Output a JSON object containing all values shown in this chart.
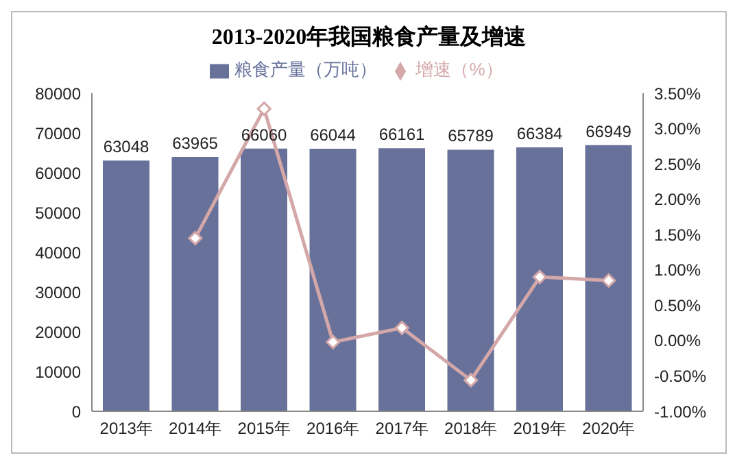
{
  "chart_data": {
    "type": "bar",
    "title": "2013-2020年我国粮食产量及增速",
    "categories": [
      "2013年",
      "2014年",
      "2015年",
      "2016年",
      "2017年",
      "2018年",
      "2019年",
      "2020年"
    ],
    "series": [
      {
        "name": "粮食产量（万吨）",
        "color": "#68719a",
        "values": [
          63048,
          63965,
          66060,
          66044,
          66161,
          65789,
          66384,
          66949
        ],
        "value_labels": [
          "63048",
          "63965",
          "66060",
          "66044",
          "66161",
          "65789",
          "66384",
          "66949"
        ]
      },
      {
        "name": "增速（%）",
        "type": "line",
        "axis": "y2",
        "color": "#d4a7a8",
        "marker": "diamond",
        "values": [
          null,
          1.45,
          3.28,
          -0.02,
          0.18,
          -0.56,
          0.9,
          0.85
        ]
      }
    ],
    "ylim": [
      0,
      80000
    ],
    "yticks": [
      0,
      10000,
      20000,
      30000,
      40000,
      50000,
      60000,
      70000,
      80000
    ],
    "y2lim": [
      -1,
      3.5
    ],
    "y2ticks": [
      {
        "value": -1,
        "label": "-1.00%"
      },
      {
        "value": -0.5,
        "label": "-0.50%"
      },
      {
        "value": 0,
        "label": "0.00%"
      },
      {
        "value": 0.5,
        "label": "0.50%"
      },
      {
        "value": 1,
        "label": "1.00%"
      },
      {
        "value": 1.5,
        "label": "1.50%"
      },
      {
        "value": 2,
        "label": "2.00%"
      },
      {
        "value": 2.5,
        "label": "2.50%"
      },
      {
        "value": 3,
        "label": "3.00%"
      },
      {
        "value": 3.5,
        "label": "3.50%"
      }
    ],
    "legend": "top"
  }
}
